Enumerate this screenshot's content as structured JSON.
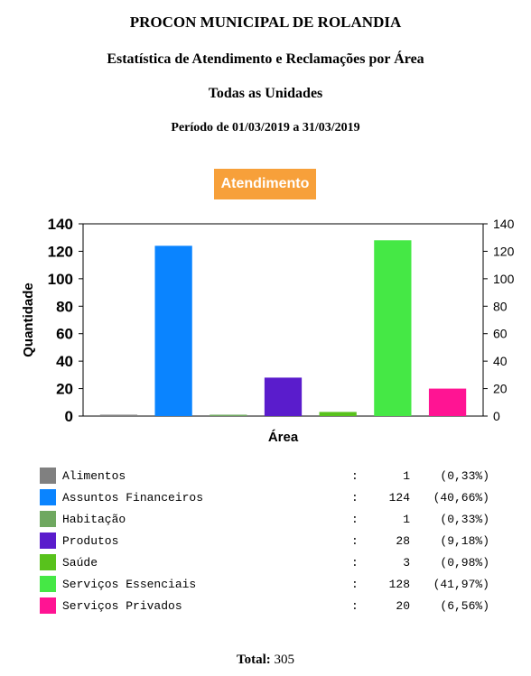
{
  "header": {
    "title": "PROCON MUNICIPAL DE ROLANDIA",
    "subtitle": "Estatística de Atendimento e Reclamações por Área",
    "scope": "Todas as Unidades",
    "period": "Período de 01/03/2019 a 31/03/2019"
  },
  "badge": {
    "label": "Atendimento",
    "color": "#f7a03a"
  },
  "chart_data": {
    "type": "bar",
    "ylabel": "Quantidade",
    "xlabel": "Área",
    "ylim": [
      0,
      140
    ],
    "yticks": [
      0,
      20,
      40,
      60,
      80,
      100,
      120,
      140
    ],
    "grid": false,
    "categories": [
      "Alimentos",
      "Assuntos Financeiros",
      "Habitação",
      "Produtos",
      "Saúde",
      "Serviços Essenciais",
      "Serviços Privados"
    ],
    "values": [
      1,
      124,
      1,
      28,
      3,
      128,
      20
    ],
    "colors": [
      "#808080",
      "#0a84ff",
      "#6fa860",
      "#5a1ccc",
      "#58c21c",
      "#45e845",
      "#ff1493"
    ]
  },
  "legend": [
    {
      "name": "Alimentos",
      "sep": ":",
      "value": "1",
      "pct": "(0,33%)"
    },
    {
      "name": "Assuntos Financeiros",
      "sep": ":",
      "value": "124",
      "pct": "(40,66%)"
    },
    {
      "name": "Habitação",
      "sep": ":",
      "value": "1",
      "pct": "(0,33%)"
    },
    {
      "name": "Produtos",
      "sep": ":",
      "value": "28",
      "pct": "(9,18%)"
    },
    {
      "name": "Saúde",
      "sep": ":",
      "value": "3",
      "pct": "(0,98%)"
    },
    {
      "name": "Serviços Essenciais",
      "sep": ":",
      "value": "128",
      "pct": "(41,97%)"
    },
    {
      "name": "Serviços Privados",
      "sep": ":",
      "value": "20",
      "pct": "(6,56%)"
    }
  ],
  "total": {
    "label": "Total:",
    "value": "305"
  }
}
